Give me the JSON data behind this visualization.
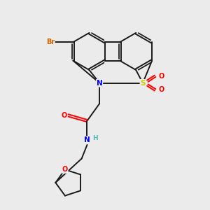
{
  "bg_color": "#ebebeb",
  "bond_color": "#1a1a1a",
  "atom_colors": {
    "Br": "#cc6600",
    "S": "#cccc00",
    "N": "#0000ff",
    "O": "#ff0000",
    "H": "#4dbbbb"
  },
  "figsize": [
    3.0,
    3.0
  ],
  "dpi": 100,
  "lw": 1.4
}
